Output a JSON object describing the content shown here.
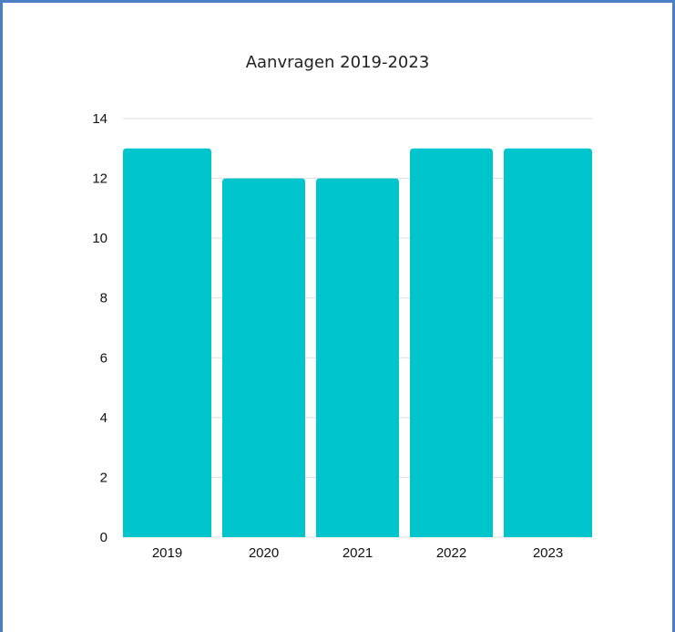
{
  "chart_data": {
    "type": "bar",
    "title": "Aanvragen 2019-2023",
    "xlabel": "",
    "ylabel": "",
    "categories": [
      "2019",
      "2020",
      "2021",
      "2022",
      "2023"
    ],
    "values": [
      13,
      12,
      12,
      13,
      13
    ],
    "ylim": [
      0,
      14
    ],
    "yticks": [
      "0",
      "2",
      "4",
      "6",
      "8",
      "10",
      "12",
      "14"
    ],
    "grid": true,
    "legend": "none",
    "colors": {
      "bar": "#00c5cc",
      "grid": "#dddddd",
      "frame": "#4a7fc4"
    }
  }
}
